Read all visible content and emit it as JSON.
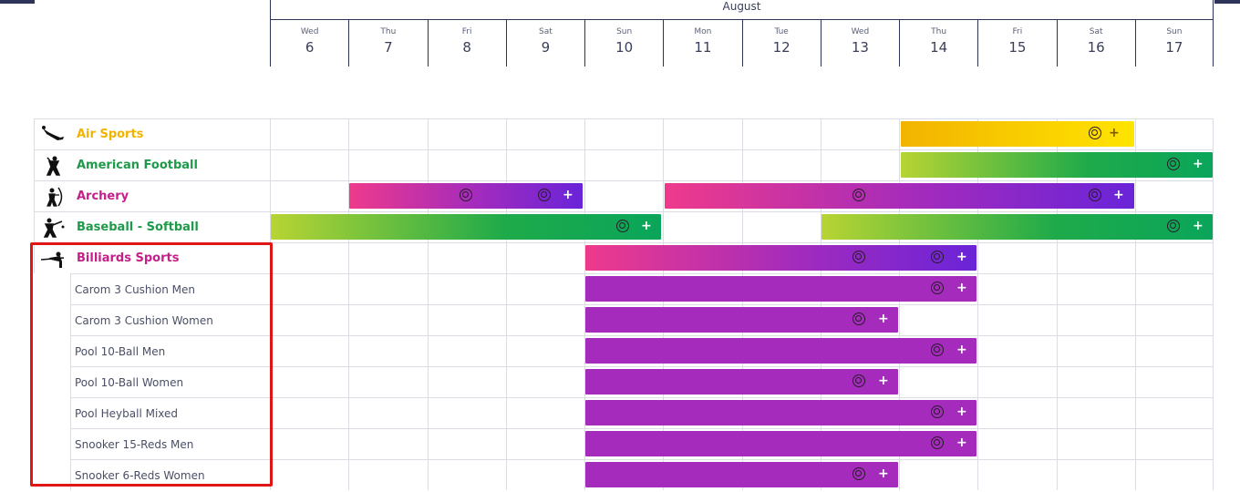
{
  "header": {
    "month": "August",
    "days": [
      {
        "dow": "Wed",
        "num": "6"
      },
      {
        "dow": "Thu",
        "num": "7"
      },
      {
        "dow": "Fri",
        "num": "8"
      },
      {
        "dow": "Sat",
        "num": "9"
      },
      {
        "dow": "Sun",
        "num": "10"
      },
      {
        "dow": "Mon",
        "num": "11"
      },
      {
        "dow": "Tue",
        "num": "12"
      },
      {
        "dow": "Wed",
        "num": "13"
      },
      {
        "dow": "Thu",
        "num": "14"
      },
      {
        "dow": "Fri",
        "num": "15"
      },
      {
        "dow": "Sat",
        "num": "16"
      },
      {
        "dow": "Sun",
        "num": "17"
      }
    ]
  },
  "colors": {
    "air_sports": "#f0b400",
    "american_football": "#1e9a4a",
    "archery": "#c4208a",
    "baseball": "#1e9a4a",
    "billiards": "#c4208a",
    "highlight": "#e01515"
  },
  "sports": [
    {
      "name": "Air Sports",
      "icon": "skydiver-icon",
      "color": "#f0b400"
    },
    {
      "name": "American Football",
      "icon": "football-player-icon",
      "color": "#1e9a4a"
    },
    {
      "name": "Archery",
      "icon": "archer-icon",
      "color": "#c4208a"
    },
    {
      "name": "Baseball - Softball",
      "icon": "baseball-batter-icon",
      "color": "#1e9a4a"
    },
    {
      "name": "Billiards Sports",
      "icon": "billiards-player-icon",
      "color": "#c4208a"
    }
  ],
  "billiards_events": [
    "Carom 3 Cushion Men",
    "Carom 3 Cushion Women",
    "Pool 10-Ball Men",
    "Pool 10-Ball Women",
    "Pool Heyball Mixed",
    "Snooker 15-Reds Men",
    "Snooker 6-Reds Women"
  ],
  "plus_symbol": "+"
}
